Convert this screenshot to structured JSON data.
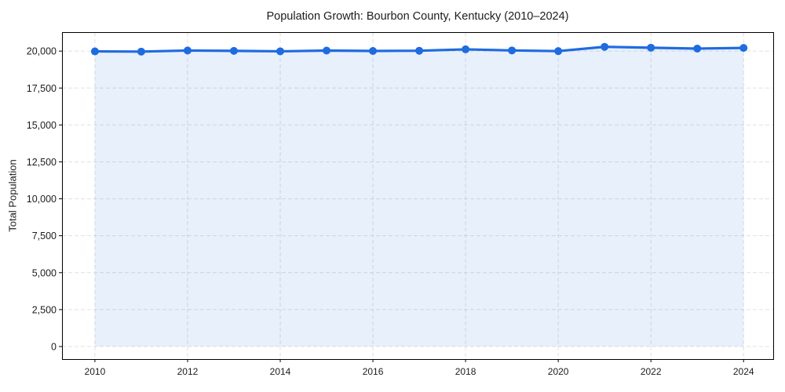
{
  "chart_data": {
    "type": "line",
    "title": "Population Growth: Bourbon County, Kentucky (2010–2024)",
    "xlabel": "",
    "ylabel": "Total Population",
    "x": [
      2010,
      2011,
      2012,
      2013,
      2014,
      2015,
      2016,
      2017,
      2018,
      2019,
      2020,
      2021,
      2022,
      2023,
      2024
    ],
    "series": [
      {
        "name": "Total Population",
        "values": [
          19980,
          19965,
          20040,
          20015,
          19985,
          20035,
          20010,
          20025,
          20120,
          20045,
          20000,
          20290,
          20230,
          20170,
          20215
        ]
      }
    ],
    "x_tick_labels": [
      "2010",
      "2012",
      "2014",
      "2016",
      "2018",
      "2020",
      "2022",
      "2024"
    ],
    "x_ticks": [
      2010,
      2012,
      2014,
      2016,
      2018,
      2020,
      2022,
      2024
    ],
    "y_ticks": [
      0,
      2500,
      5000,
      7500,
      10000,
      12500,
      15000,
      17500,
      20000
    ],
    "y_tick_labels": [
      "0",
      "2,500",
      "5,000",
      "7,500",
      "10,000",
      "12,500",
      "15,000",
      "17,500",
      "20,000"
    ],
    "xlim": [
      2009.29,
      2024.64
    ],
    "ylim": [
      -850,
      21230
    ],
    "grid": true,
    "legend": false,
    "marker": "circle",
    "area_fill": true
  },
  "colors": {
    "line": "#1f6be0",
    "marker": "#1f6be0",
    "area_fill": "#e8f0fb",
    "grid": "#d6d6d6",
    "spine": "#000000",
    "text": "#1c1c1c",
    "background": "#ffffff"
  }
}
